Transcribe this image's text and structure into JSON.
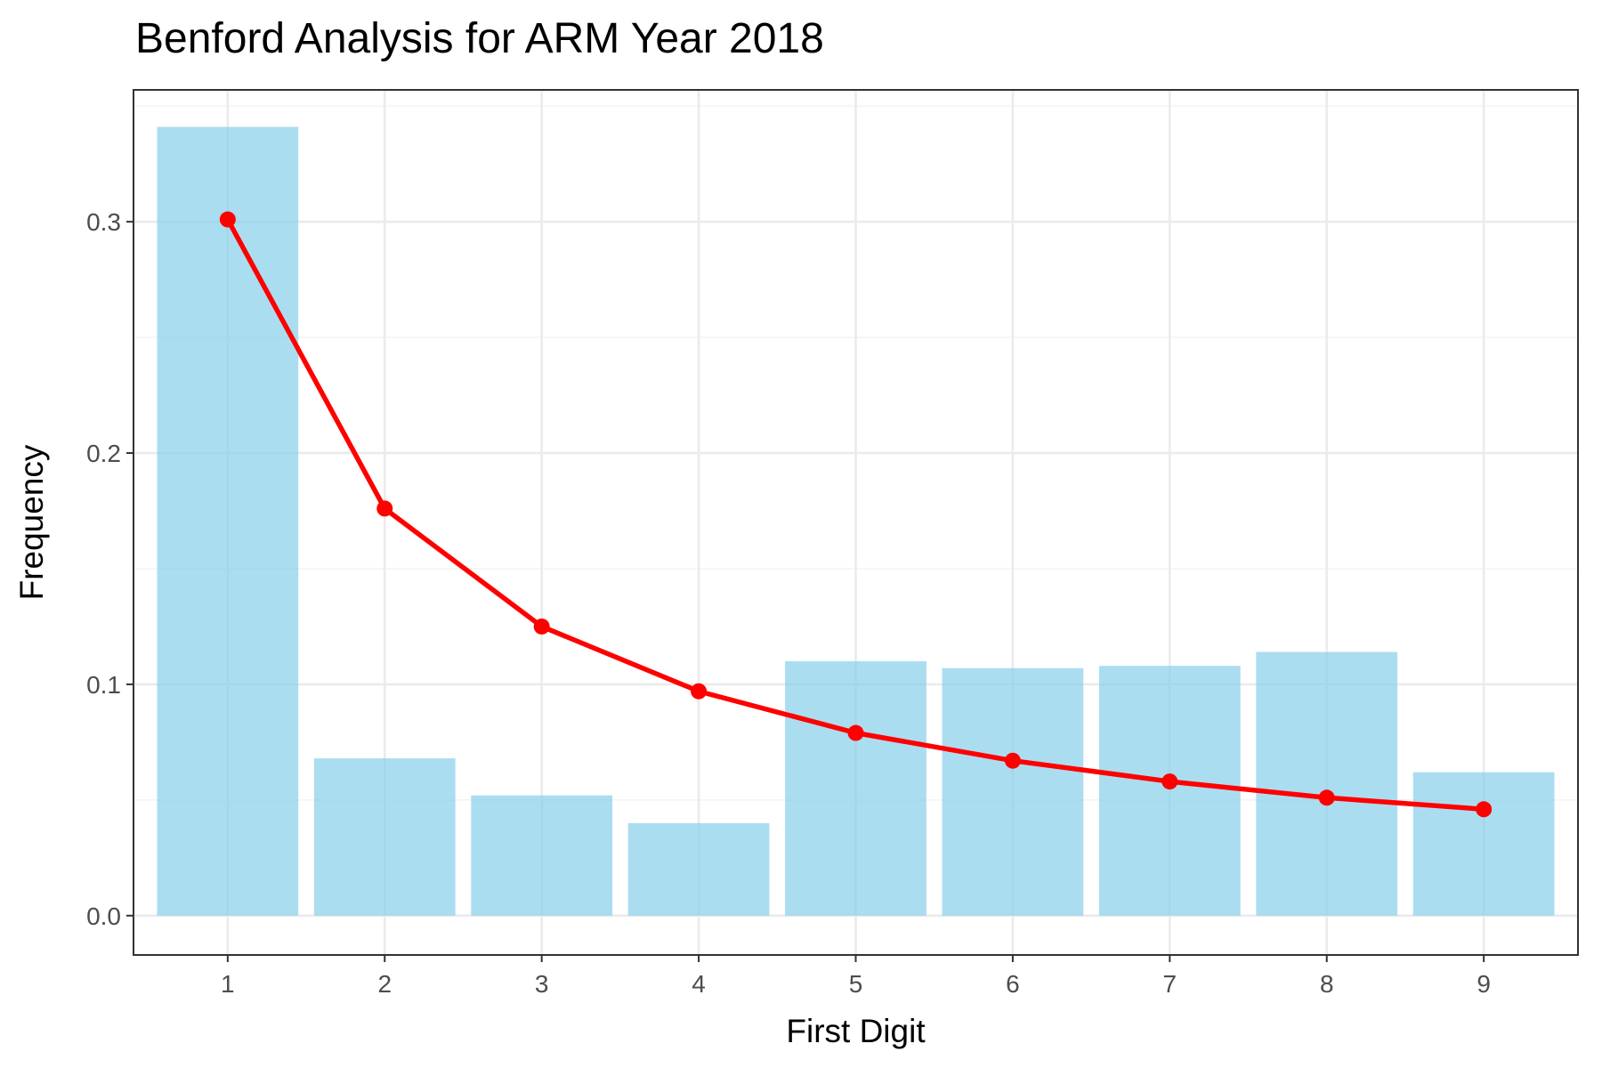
{
  "chart_data": {
    "type": "bar",
    "title": "Benford Analysis for ARM Year 2018",
    "xlabel": "First Digit",
    "ylabel": "Frequency",
    "categories": [
      "1",
      "2",
      "3",
      "4",
      "5",
      "6",
      "7",
      "8",
      "9"
    ],
    "x_ticks": [
      "1",
      "2",
      "3",
      "4",
      "5",
      "6",
      "7",
      "8",
      "9"
    ],
    "y_ticks": [
      "0.0",
      "0.1",
      "0.2",
      "0.3"
    ],
    "ylim": [
      -0.017,
      0.357
    ],
    "grid": true,
    "series": [
      {
        "type": "bar",
        "color": "#87CEEB",
        "values": [
          0.341,
          0.068,
          0.052,
          0.04,
          0.11,
          0.107,
          0.108,
          0.114,
          0.062
        ]
      },
      {
        "type": "line",
        "color": "#FF0000",
        "markers": true,
        "values": [
          0.301,
          0.176,
          0.125,
          0.097,
          0.079,
          0.067,
          0.058,
          0.051,
          0.046
        ]
      }
    ]
  }
}
